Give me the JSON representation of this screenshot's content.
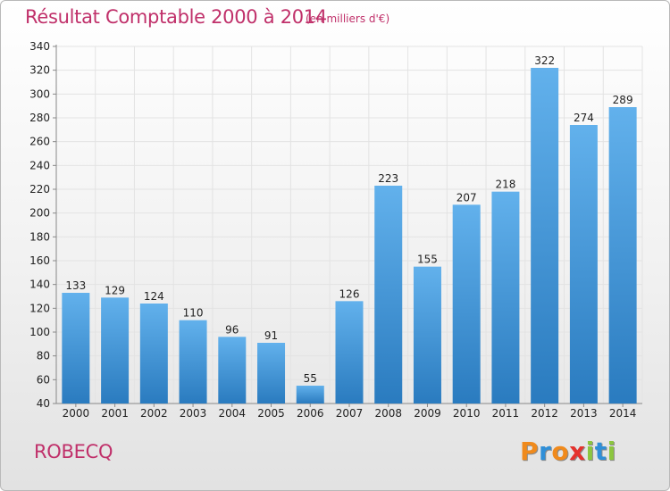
{
  "header": {
    "title": "Résultat Comptable 2000 à 2014",
    "subtitle": "(en milliers d'€)"
  },
  "footer": {
    "commune": "ROBECQ",
    "logo": "Proxiti",
    "logo_colors": [
      "#f08a1c",
      "#2f8fd8",
      "#f08a1c",
      "#e5322d",
      "#8cc63f",
      "#2f8fd8",
      "#8cc63f"
    ]
  },
  "colors": {
    "bar_top": "#62b1ec",
    "bar_bottom": "#2a7bbf",
    "text_accent": "#c0306a"
  },
  "chart_data": {
    "type": "bar",
    "title": "Résultat Comptable 2000 à 2014",
    "subtitle": "(en milliers d'€)",
    "categories": [
      "2000",
      "2001",
      "2002",
      "2003",
      "2004",
      "2005",
      "2006",
      "2007",
      "2008",
      "2009",
      "2010",
      "2011",
      "2012",
      "2013",
      "2014"
    ],
    "values": [
      133,
      129,
      124,
      110,
      96,
      91,
      55,
      126,
      223,
      155,
      207,
      218,
      322,
      274,
      289
    ],
    "ylim": [
      40,
      340
    ],
    "ytick_step": 20,
    "yticks": [
      "40",
      "60",
      "80",
      "100",
      "120",
      "140",
      "160",
      "180",
      "200",
      "220",
      "240",
      "260",
      "280",
      "300",
      "320",
      "340"
    ],
    "grid": true,
    "data_labels": true
  }
}
